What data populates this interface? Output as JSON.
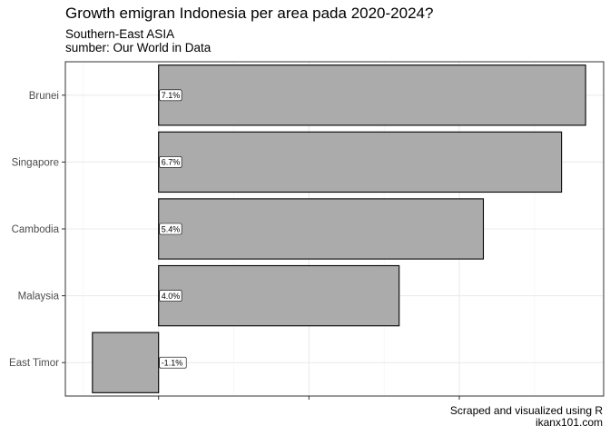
{
  "chart_data": {
    "type": "bar",
    "orientation": "horizontal",
    "title": "Growth emigran Indonesia per area pada 2020-2024?",
    "subtitle_line1": "Southern-East ASIA",
    "subtitle_line2": "sumber: Our World in Data",
    "caption_line1": "Scraped and visualized using R",
    "caption_line2": "ikanx101.com",
    "categories": [
      "Brunei",
      "Singapore",
      "Cambodia",
      "Malaysia",
      "East Timor"
    ],
    "values": [
      7.1,
      6.7,
      5.4,
      4.0,
      -1.1
    ],
    "labels": [
      "7.1%",
      "6.7%",
      "5.4%",
      "4.0%",
      "-1.1%"
    ],
    "xlim": [
      -1.55,
      7.4
    ],
    "major_ticks": [
      0,
      2.5,
      5
    ],
    "minor_ticks": [
      -1.25,
      1.25,
      3.75,
      6.25
    ],
    "xlabel": "",
    "ylabel": "",
    "grid": true,
    "colors": {
      "bar_fill": "#ababab",
      "bar_stroke": "#000000",
      "grid_major": "#ebebeb",
      "grid_minor": "#f4f4f4"
    }
  }
}
